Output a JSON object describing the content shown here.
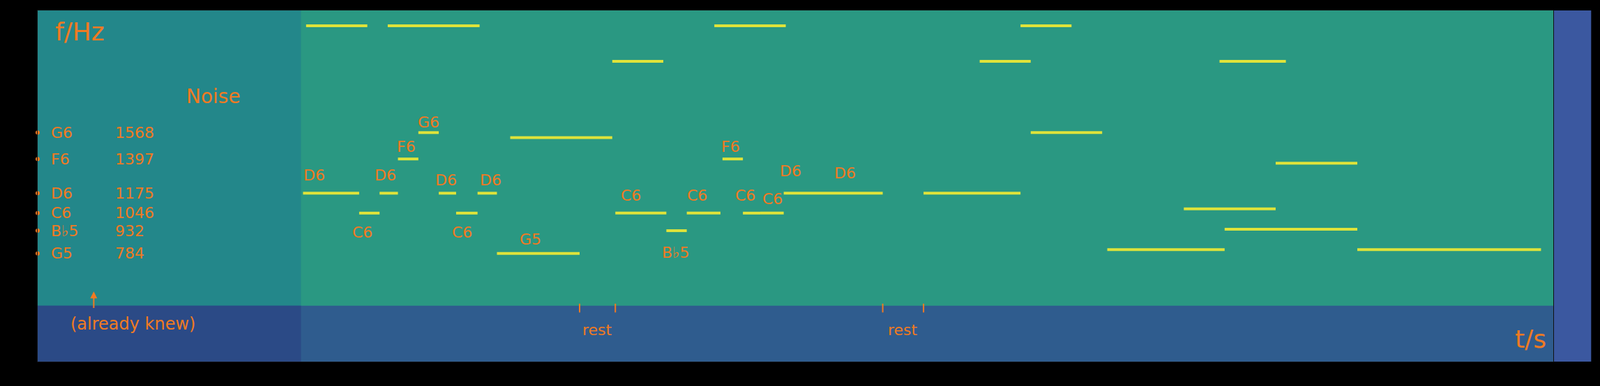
{
  "chart_data": {
    "type": "spectrogram",
    "x_label": "t/s",
    "y_label": "f/Hz",
    "xlim": [
      0,
      29.7
    ],
    "ylim": [
      83,
      2360
    ],
    "xticks": [],
    "yticks": [],
    "tick_labels": false,
    "color": "#dfe33a",
    "noise": {
      "label": "Noise",
      "t0": 0,
      "t1": 5.16
    },
    "low_band_f": 446,
    "reference": {
      "note": "(already knew)",
      "entries": [
        {
          "note": "G6",
          "f": 1568
        },
        {
          "note": "F6",
          "f": 1397
        },
        {
          "note": "D6",
          "f": 1175
        },
        {
          "note": "C6",
          "f": 1046
        },
        {
          "note": "B♭5",
          "f": 932
        },
        {
          "note": "G5",
          "f": 784
        }
      ]
    },
    "segments": [
      {
        "t0": 5.2,
        "t1": 6.3,
        "f": 1175
      },
      {
        "t0": 6.3,
        "t1": 6.7,
        "f": 1046
      },
      {
        "t0": 6.7,
        "t1": 7.06,
        "f": 1175
      },
      {
        "t0": 7.06,
        "t1": 7.46,
        "f": 1397
      },
      {
        "t0": 7.46,
        "t1": 7.86,
        "f": 1568
      },
      {
        "t0": 7.86,
        "t1": 8.2,
        "f": 1175
      },
      {
        "t0": 8.2,
        "t1": 8.62,
        "f": 1046
      },
      {
        "t0": 8.62,
        "t1": 9.0,
        "f": 1175
      },
      {
        "t0": 9.0,
        "t1": 10.62,
        "f": 784
      },
      {
        "t0": 11.32,
        "t1": 12.32,
        "f": 1046
      },
      {
        "t0": 12.32,
        "t1": 12.72,
        "f": 932
      },
      {
        "t0": 12.72,
        "t1": 13.38,
        "f": 1046
      },
      {
        "t0": 13.42,
        "t1": 13.82,
        "f": 1397
      },
      {
        "t0": 13.82,
        "t1": 14.16,
        "f": 1046
      },
      {
        "t0": 14.16,
        "t1": 14.62,
        "f": 1046
      },
      {
        "t0": 14.62,
        "t1": 16.56,
        "f": 1175
      },
      {
        "t0": 5.26,
        "t1": 6.46,
        "f": 2261
      },
      {
        "t0": 6.86,
        "t1": 8.66,
        "f": 2261
      },
      {
        "t0": 13.26,
        "t1": 14.66,
        "f": 2261
      },
      {
        "t0": 19.26,
        "t1": 20.26,
        "f": 2261
      },
      {
        "t0": 9.26,
        "t1": 11.26,
        "f": 1535
      },
      {
        "t0": 11.26,
        "t1": 12.26,
        "f": 2030
      },
      {
        "t0": 18.46,
        "t1": 19.46,
        "f": 2030
      },
      {
        "t0": 23.16,
        "t1": 24.46,
        "f": 2030
      },
      {
        "t0": 17.36,
        "t1": 19.26,
        "f": 1175
      },
      {
        "t0": 19.46,
        "t1": 20.86,
        "f": 1568
      },
      {
        "t0": 20.96,
        "t1": 23.26,
        "f": 809
      },
      {
        "t0": 25.86,
        "t1": 29.46,
        "f": 809
      },
      {
        "t0": 23.26,
        "t1": 25.86,
        "f": 941
      },
      {
        "t0": 22.46,
        "t1": 24.26,
        "f": 1073
      },
      {
        "t0": 24.26,
        "t1": 25.86,
        "f": 1370
      }
    ],
    "note_labels": [
      {
        "text": "D6",
        "t": 5.42,
        "f": 1291
      },
      {
        "text": "C6",
        "t": 6.36,
        "f": 921
      },
      {
        "text": "D6",
        "t": 6.82,
        "f": 1291
      },
      {
        "text": "F6",
        "t": 7.22,
        "f": 1476
      },
      {
        "text": "G6",
        "t": 7.66,
        "f": 1634
      },
      {
        "text": "D6",
        "t": 8.0,
        "f": 1258
      },
      {
        "text": "C6",
        "t": 8.32,
        "f": 921
      },
      {
        "text": "D6",
        "t": 8.88,
        "f": 1258
      },
      {
        "text": "G5",
        "t": 9.66,
        "f": 875
      },
      {
        "text": "C6",
        "t": 11.62,
        "f": 1159
      },
      {
        "text": "B♭5",
        "t": 12.5,
        "f": 789
      },
      {
        "text": "C6",
        "t": 12.92,
        "f": 1159
      },
      {
        "text": "F6",
        "t": 13.58,
        "f": 1476
      },
      {
        "text": "C6",
        "t": 13.86,
        "f": 1159
      },
      {
        "text": "C6",
        "t": 14.4,
        "f": 1139
      },
      {
        "text": "D6",
        "t": 14.76,
        "f": 1317
      },
      {
        "text": "D6",
        "t": 15.82,
        "f": 1304
      }
    ],
    "rests": [
      {
        "label": "rest",
        "t0": 10.62,
        "t1": 11.32
      },
      {
        "label": "rest",
        "t0": 16.56,
        "t1": 17.36
      }
    ]
  }
}
